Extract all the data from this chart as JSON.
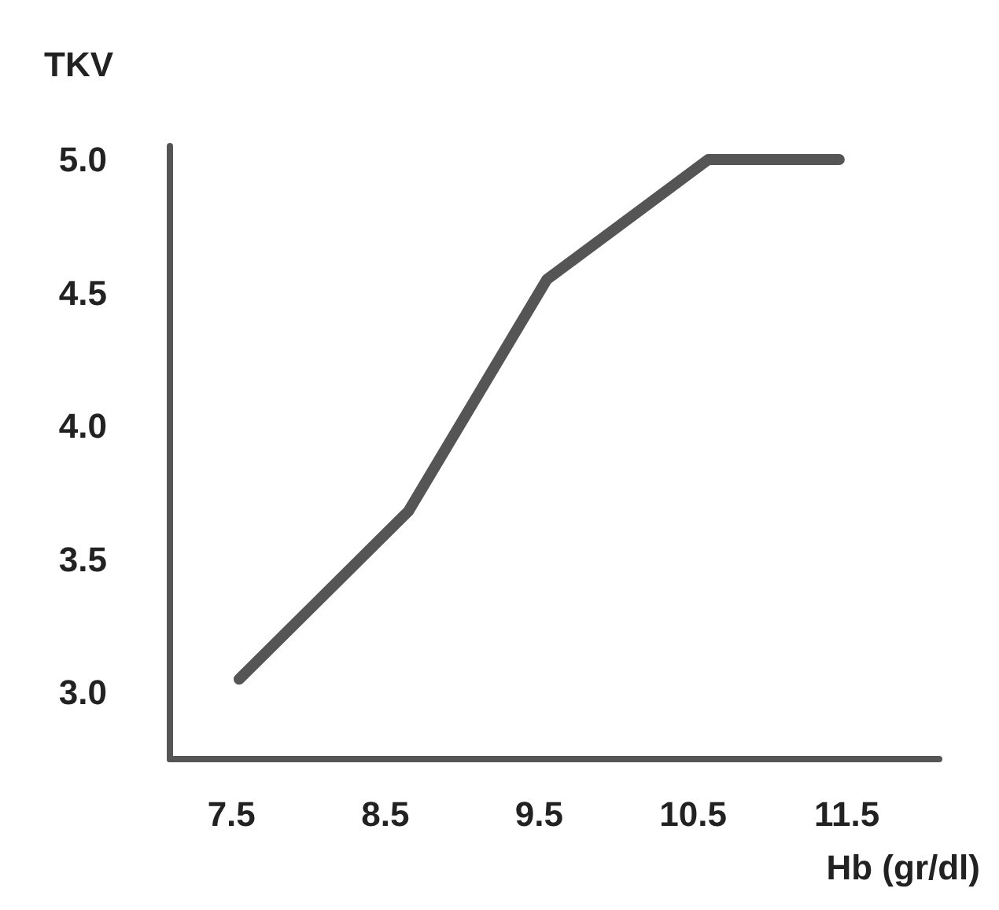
{
  "chart_data": {
    "type": "line",
    "xlabel": "Hb (gr/dl)",
    "ylabel": "TKV",
    "x": [
      7.55,
      8.65,
      9.55,
      10.6,
      11.45
    ],
    "series": [
      {
        "color": "#555555",
        "values": [
          3.05,
          3.68,
          4.55,
          5.0,
          5.0
        ]
      }
    ],
    "xlim": [
      7.1,
      12.1
    ],
    "xticks": [
      7.5,
      8.5,
      9.5,
      10.5,
      11.5
    ],
    "ylim": [
      2.75,
      5.05
    ],
    "yticks": [
      {
        "value": 3,
        "label": "3.0"
      },
      {
        "value": 3.5,
        "label": "3.5"
      },
      {
        "value": 4,
        "label": "4.0"
      },
      {
        "value": 4.5,
        "label": "4.5"
      },
      {
        "value": 5,
        "label": "5.0"
      }
    ],
    "grid": false,
    "marker": "none",
    "line_style": "solid"
  }
}
